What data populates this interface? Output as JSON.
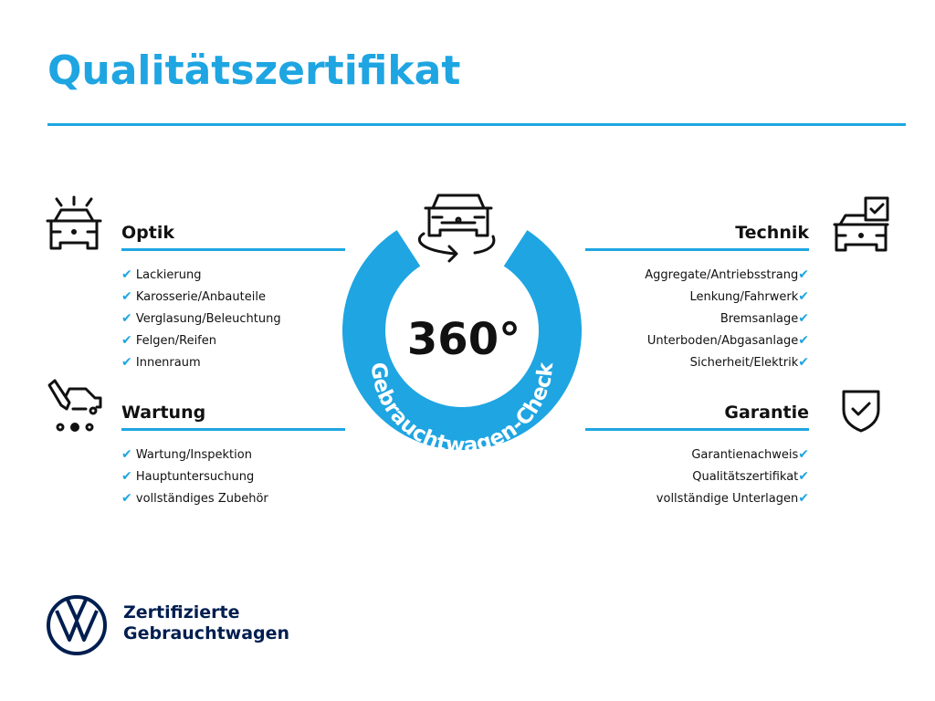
{
  "title": "Qualitätszertifikat",
  "colors": {
    "accent": "#1ea5e2",
    "brand_navy": "#001e50"
  },
  "center": {
    "degrees": "360°",
    "ring_text": "Gebrauchtwagen-Check",
    "icon": "car-rotate-icon"
  },
  "sections": {
    "optik": {
      "heading": "Optik",
      "icon": "car-lights-icon",
      "items": [
        "Lackierung",
        "Karosserie/Anbauteile",
        "Verglasung/Beleuchtung",
        "Felgen/Reifen",
        "Innenraum"
      ]
    },
    "wartung": {
      "heading": "Wartung",
      "icon": "car-service-icon",
      "items": [
        "Wartung/Inspektion",
        "Hauptuntersuchung",
        "vollständiges Zubehör"
      ]
    },
    "technik": {
      "heading": "Technik",
      "icon": "car-checkbox-icon",
      "items": [
        "Aggregate/Antriebsstrang",
        "Lenkung/Fahrwerk",
        "Bremsanlage",
        "Unterboden/Abgasanlage",
        "Sicherheit/Elektrik"
      ]
    },
    "garantie": {
      "heading": "Garantie",
      "icon": "shield-check-icon",
      "items": [
        "Garantienachweis",
        "Qualitätszertifikat",
        "vollständige Unterlagen"
      ]
    }
  },
  "check_mark": "✔",
  "footer": {
    "logo": "VW",
    "line1": "Zertifizierte",
    "line2": "Gebrauchtwagen"
  }
}
